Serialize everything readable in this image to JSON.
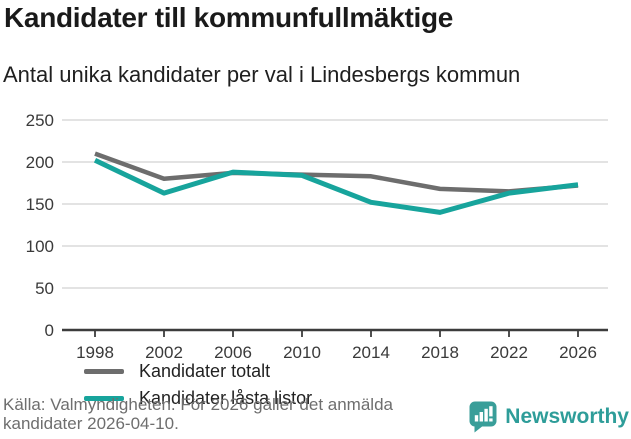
{
  "chart_data": {
    "type": "line",
    "title": "Kandidater till kommunfullmäktige",
    "subtitle": "Antal unika kandidater per val i Lindesbergs kommun",
    "x": [
      1998,
      2002,
      2006,
      2010,
      2014,
      2018,
      2022,
      2026
    ],
    "series": [
      {
        "name": "Kandidater totalt",
        "color": "#6d6d6d",
        "stroke_width": 4.5,
        "values": [
          210,
          180,
          187,
          185,
          183,
          168,
          165,
          172
        ]
      },
      {
        "name": "Kandidater låsta listor",
        "color": "#17a49c",
        "stroke_width": 5,
        "values": [
          202,
          163,
          188,
          184,
          152,
          140,
          163,
          173
        ]
      }
    ],
    "xlabel": "",
    "ylabel": "",
    "ylim": [
      0,
      250
    ],
    "yticks": [
      0,
      50,
      100,
      150,
      200,
      250
    ],
    "grid": "horizontal",
    "legend_position": "inside-bottom-left"
  },
  "footer": {
    "source_line1": "Källa: Valmyndigheten. För 2026 gäller det anmälda",
    "source_line2": "kandidater 2026-04-10.",
    "brand_name": "Newsworthy"
  },
  "colors": {
    "accent_teal": "#17a49c",
    "series_gray": "#6d6d6d",
    "logo_teal": "#399e99",
    "grid": "#e3e3e3",
    "axis": "#3c3c3c",
    "text_dark": "#1a1a1a",
    "text_muted": "#6e6e6e"
  }
}
